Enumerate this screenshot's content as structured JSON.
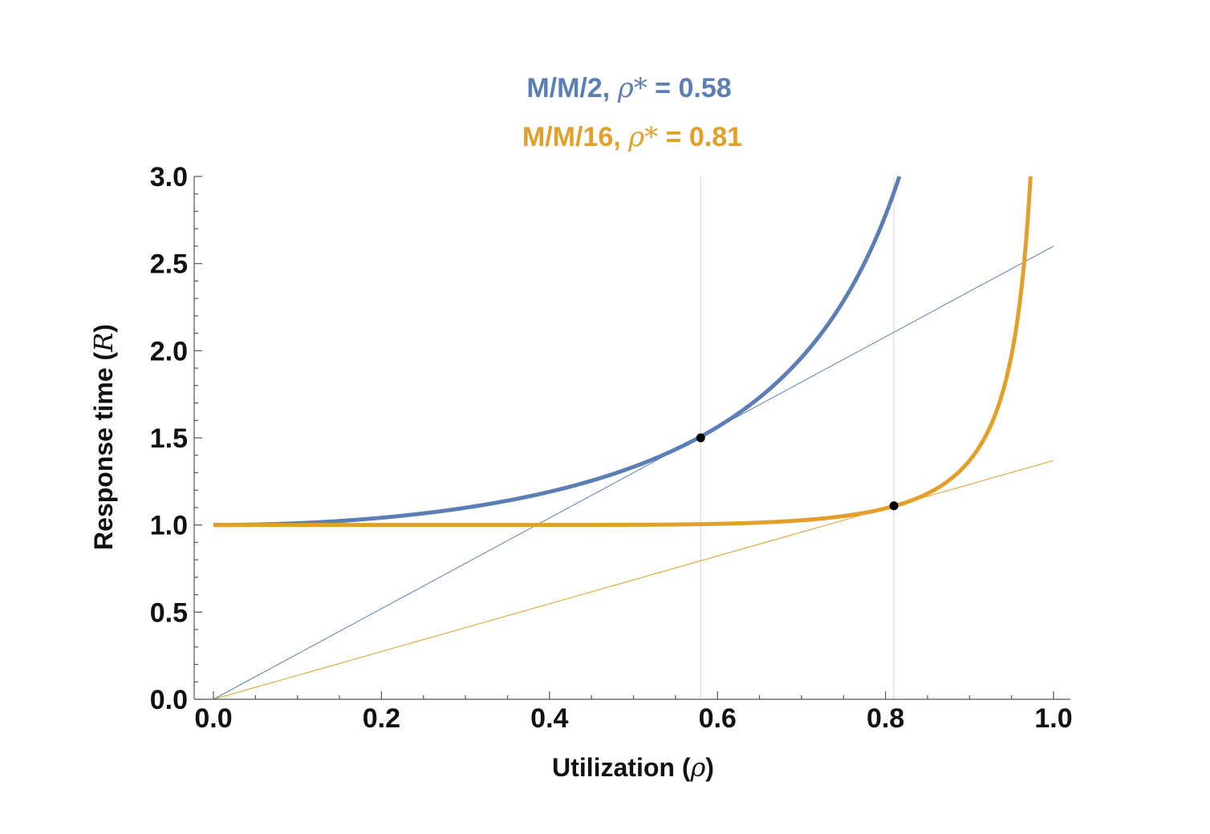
{
  "chart_data": {
    "type": "line",
    "title_lines": [
      {
        "model": "M/M/2",
        "symbol": "ρ*",
        "equals": "=",
        "value": "0.58",
        "color": "#5b7fb5"
      },
      {
        "model": "M/M/16",
        "symbol": "ρ*",
        "equals": "=",
        "value": "0.81",
        "color": "#e29f2a"
      }
    ],
    "xlabel": {
      "text": "Utilization",
      "symbol": "ρ"
    },
    "ylabel": {
      "text": "Response time",
      "symbol": "R"
    },
    "xlim": [
      0,
      1
    ],
    "ylim": [
      0,
      3
    ],
    "x_ticks": [
      "0.0",
      "0.2",
      "0.4",
      "0.6",
      "0.8",
      "1.0"
    ],
    "y_ticks": [
      "0.0",
      "0.5",
      "1.0",
      "1.5",
      "2.0",
      "2.5",
      "3.0"
    ],
    "series": [
      {
        "servers": 2,
        "color": "#5b7fb5",
        "rho_star": 0.58,
        "knee_point": [
          0.58,
          1.5
        ],
        "tangent_line": {
          "from": [
            0,
            0
          ],
          "to": [
            1,
            2.6
          ]
        }
      },
      {
        "servers": 16,
        "color": "#e29f2a",
        "rho_star": 0.81,
        "knee_point": [
          0.81,
          1.11
        ],
        "tangent_line": {
          "from": [
            0,
            0
          ],
          "to": [
            1,
            1.37
          ]
        }
      }
    ],
    "grid": false
  }
}
